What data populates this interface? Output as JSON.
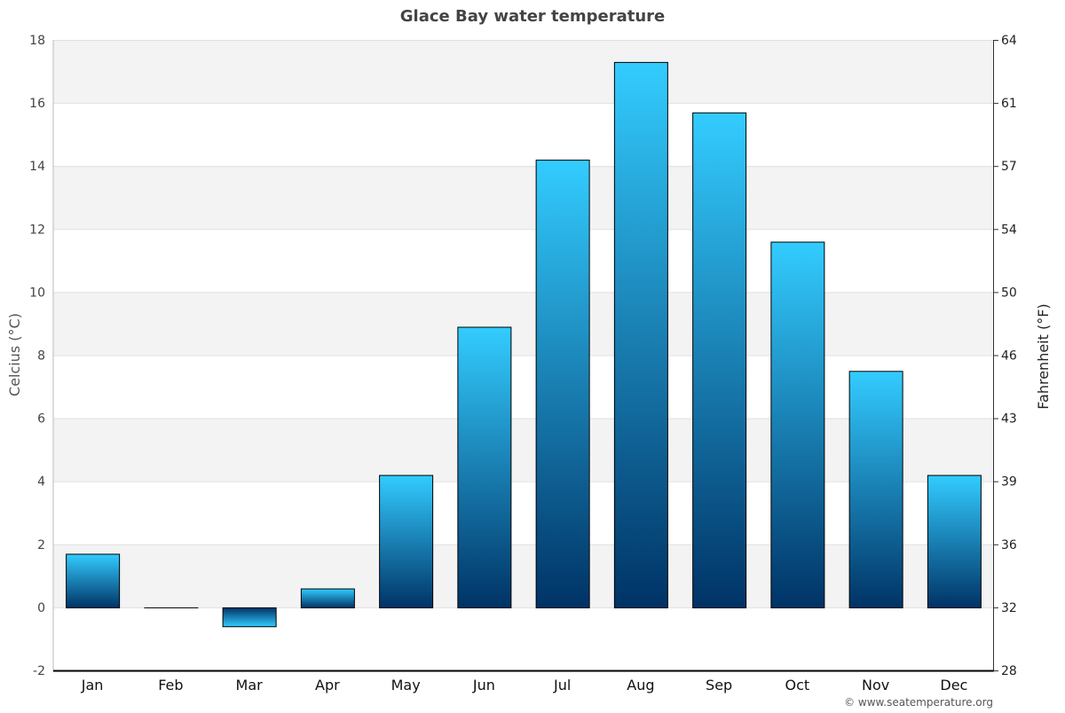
{
  "chart_data": {
    "type": "bar",
    "title": "Glace Bay water temperature",
    "ylabel": "Celcius (°C)",
    "ylabel_right": "Fahrenheit (°F)",
    "categories": [
      "Jan",
      "Feb",
      "Mar",
      "Apr",
      "May",
      "Jun",
      "Jul",
      "Aug",
      "Sep",
      "Oct",
      "Nov",
      "Dec"
    ],
    "values": [
      1.7,
      0,
      -0.6,
      0.6,
      4.2,
      8.9,
      14.2,
      17.3,
      15.7,
      11.6,
      7.5,
      4.2
    ],
    "ylim": [
      -2,
      18
    ],
    "yticks": [
      -2,
      0,
      2,
      4,
      6,
      8,
      10,
      12,
      14,
      16,
      18
    ],
    "yticks_right": [
      "28",
      "32",
      "36",
      "39",
      "43",
      "46",
      "50",
      "54",
      "57",
      "61",
      "64"
    ],
    "grid": true,
    "colors": {
      "bar_top": "#33ccff",
      "bar_bottom": "#003366",
      "band": "#f3f3f3",
      "grid": "#e0e0e0"
    }
  },
  "footer": {
    "credit": "© www.seatemperature.org"
  }
}
